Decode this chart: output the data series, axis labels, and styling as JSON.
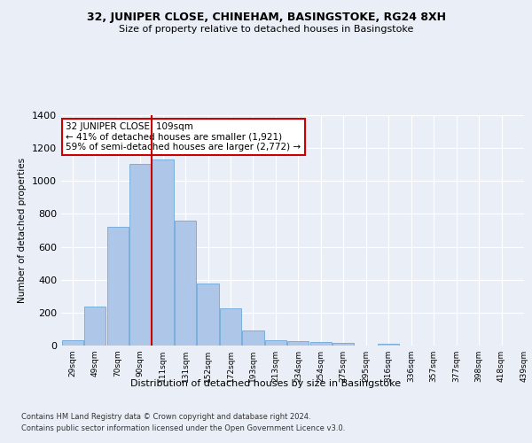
{
  "title": "32, JUNIPER CLOSE, CHINEHAM, BASINGSTOKE, RG24 8XH",
  "subtitle": "Size of property relative to detached houses in Basingstoke",
  "xlabel": "Distribution of detached houses by size in Basingstoke",
  "ylabel": "Number of detached properties",
  "bar_color": "#aec6e8",
  "bar_edge_color": "#5a9fd4",
  "bar_values": [
    30,
    235,
    720,
    1105,
    1130,
    760,
    375,
    225,
    90,
    30,
    25,
    20,
    15,
    0,
    12,
    0,
    0,
    0,
    0,
    0
  ],
  "bin_labels": [
    "29sqm",
    "49sqm",
    "70sqm",
    "90sqm",
    "111sqm",
    "131sqm",
    "152sqm",
    "172sqm",
    "193sqm",
    "213sqm",
    "234sqm",
    "254sqm",
    "275sqm",
    "295sqm",
    "316sqm",
    "336sqm",
    "357sqm",
    "377sqm",
    "398sqm",
    "418sqm",
    "439sqm"
  ],
  "ylim": [
    0,
    1400
  ],
  "yticks": [
    0,
    200,
    400,
    600,
    800,
    1000,
    1200,
    1400
  ],
  "vline_x": 3.5,
  "vline_color": "#cc0000",
  "annotation_title": "32 JUNIPER CLOSE: 109sqm",
  "annotation_line1": "← 41% of detached houses are smaller (1,921)",
  "annotation_line2": "59% of semi-detached houses are larger (2,772) →",
  "annotation_box_color": "#cc0000",
  "footer_line1": "Contains HM Land Registry data © Crown copyright and database right 2024.",
  "footer_line2": "Contains public sector information licensed under the Open Government Licence v3.0.",
  "background_color": "#eaeff7",
  "plot_bg_color": "#eaeff7"
}
